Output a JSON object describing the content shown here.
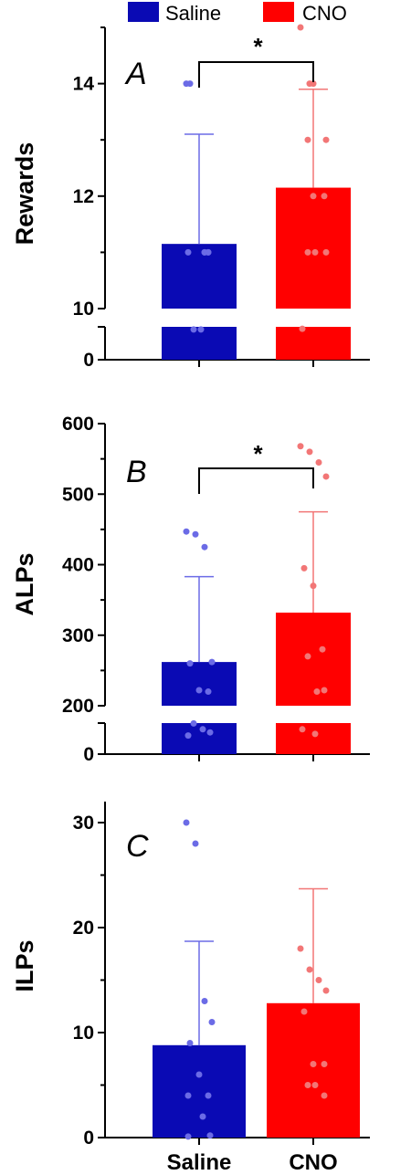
{
  "legend": [
    {
      "name": "Saline",
      "color": "#0a0ab4"
    },
    {
      "name": "CNO",
      "color": "#ff0000"
    }
  ],
  "categories": [
    "Saline",
    "CNO"
  ],
  "chart_data": [
    {
      "type": "bar",
      "panel": "A",
      "ylabel": "Rewards",
      "categories": [
        "Saline",
        "CNO"
      ],
      "values": [
        11.15,
        12.15
      ],
      "error_upper": [
        13.1,
        13.9
      ],
      "axis_break": true,
      "ylim_upper": [
        10,
        15
      ],
      "ylim_lower": [
        0,
        10
      ],
      "yticks_major": [
        10,
        12,
        14
      ],
      "yticks_lower": [
        0
      ],
      "points": [
        [
          14,
          14,
          11,
          11,
          11,
          11,
          11,
          9.2,
          9.2
        ],
        [
          15,
          14,
          14,
          13,
          13,
          12,
          12,
          11,
          11,
          11,
          9.4
        ]
      ],
      "significance": {
        "between": [
          "Saline",
          "CNO"
        ],
        "label": "*"
      }
    },
    {
      "type": "bar",
      "panel": "B",
      "ylabel": "ALPs",
      "categories": [
        "Saline",
        "CNO"
      ],
      "values": [
        262,
        332
      ],
      "error_upper": [
        383,
        475
      ],
      "axis_break": true,
      "ylim_upper": [
        200,
        600
      ],
      "ylim_lower": [
        0,
        200
      ],
      "yticks_major": [
        200,
        300,
        400,
        500,
        600
      ],
      "yticks_lower": [
        0
      ],
      "points": [
        [
          447,
          443,
          425,
          262,
          260,
          222,
          220,
          198,
          160,
          140,
          120
        ],
        [
          568,
          560,
          545,
          525,
          395,
          370,
          280,
          270,
          220,
          222,
          160,
          130
        ]
      ],
      "significance": {
        "between": [
          "Saline",
          "CNO"
        ],
        "label": "*"
      }
    },
    {
      "type": "bar",
      "panel": "C",
      "ylabel": "ILPs",
      "categories": [
        "Saline",
        "CNO"
      ],
      "values": [
        8.8,
        12.8
      ],
      "error_upper": [
        18.7,
        23.7
      ],
      "ylim": [
        0,
        32
      ],
      "yticks_major": [
        0,
        10,
        20,
        30
      ],
      "points": [
        [
          30,
          28,
          13,
          11,
          9,
          6,
          4,
          4,
          2,
          0.2,
          0.1
        ],
        [
          18,
          16,
          15,
          14,
          12,
          7,
          7,
          5,
          5,
          4
        ]
      ],
      "significance": null
    }
  ]
}
